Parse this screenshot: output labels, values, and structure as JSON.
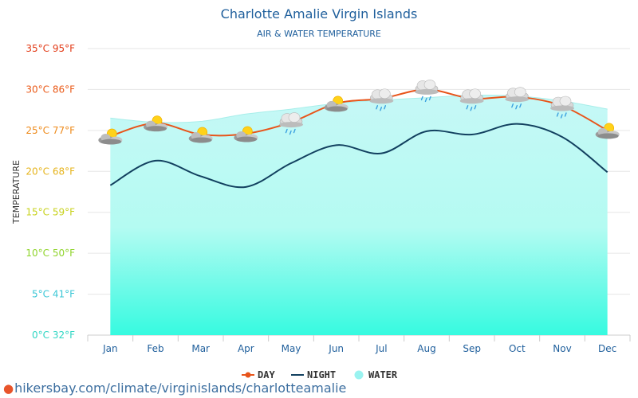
{
  "title": "Charlotte Amalie Virgin Islands",
  "subtitle": "AIR & WATER TEMPERATURE",
  "footer": "hikersbay.com/climate/virginislands/charlotteamalie",
  "colors": {
    "day": "#e8541a",
    "night": "#12405f",
    "water_top": "#c6f8f6",
    "water_bottom": "#36fae0",
    "title": "#1f5f9c"
  },
  "chart_data": {
    "type": "line",
    "title": "Charlotte Amalie Virgin Islands",
    "subtitle": "AIR & WATER TEMPERATURE",
    "ylabel": "TEMPERATURE",
    "xlabel": "",
    "categories": [
      "Jan",
      "Feb",
      "Mar",
      "Apr",
      "May",
      "Jun",
      "Jul",
      "Aug",
      "Sep",
      "Oct",
      "Nov",
      "Dec"
    ],
    "ylim": [
      0,
      35
    ],
    "yticks": [
      {
        "value": 0,
        "label": "0°C 32°F",
        "color": "#2fd6c3"
      },
      {
        "value": 5,
        "label": "5°C 41°F",
        "color": "#3cc7d6"
      },
      {
        "value": 10,
        "label": "10°C 50°F",
        "color": "#8fd42a"
      },
      {
        "value": 15,
        "label": "15°C 59°F",
        "color": "#c8d21e"
      },
      {
        "value": 20,
        "label": "20°C 68°F",
        "color": "#e6b41c"
      },
      {
        "value": 25,
        "label": "25°C 77°F",
        "color": "#ee8a1a"
      },
      {
        "value": 30,
        "label": "30°C 86°F",
        "color": "#ea5a18"
      },
      {
        "value": 35,
        "label": "35°C 95°F",
        "color": "#e23a16"
      }
    ],
    "grid": true,
    "legend_position": "bottom-center",
    "series": [
      {
        "name": "DAY",
        "kind": "line",
        "color": "#e8541a",
        "values": [
          24.3,
          25.9,
          24.5,
          24.6,
          26.0,
          28.3,
          28.9,
          30.0,
          28.9,
          29.1,
          28.0,
          25.0
        ]
      },
      {
        "name": "NIGHT",
        "kind": "line",
        "color": "#12405f",
        "values": [
          18.3,
          21.3,
          19.4,
          18.1,
          21.0,
          23.2,
          22.2,
          24.9,
          24.5,
          25.8,
          24.2,
          19.9
        ]
      },
      {
        "name": "WATER",
        "kind": "area",
        "color": "#36fae0",
        "values": [
          26.5,
          26.0,
          26.1,
          27.0,
          27.6,
          28.3,
          28.7,
          29.0,
          29.3,
          29.2,
          28.6,
          27.6
        ]
      }
    ],
    "weather_icons": [
      "sun-cloud",
      "sun-cloud",
      "sun-cloud",
      "sun-cloud",
      "rain-cloud",
      "sun-cloud",
      "rain-cloud",
      "rain-cloud",
      "rain-cloud",
      "rain-cloud",
      "rain-cloud",
      "sun-cloud"
    ]
  }
}
